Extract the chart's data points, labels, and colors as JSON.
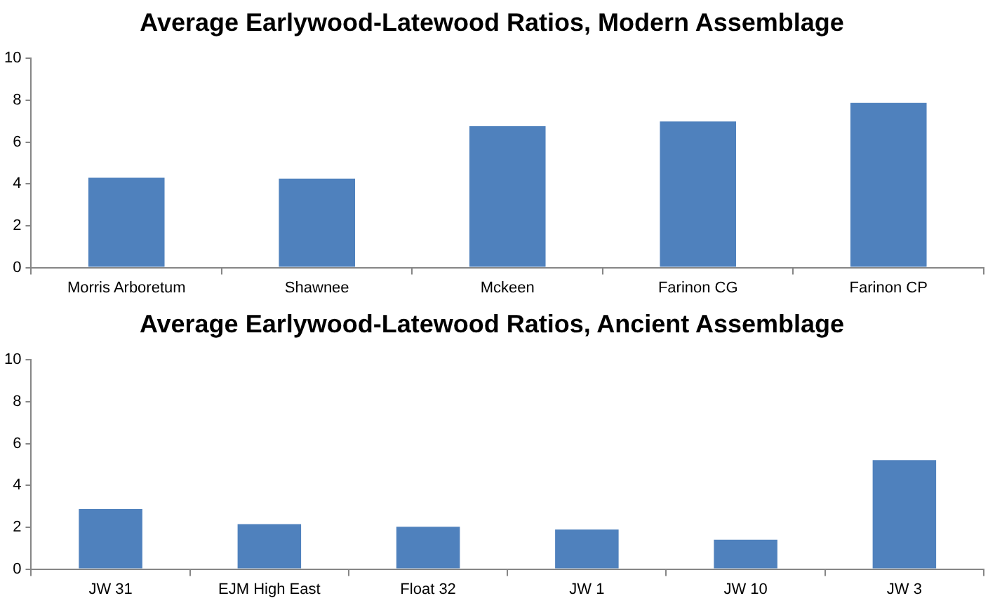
{
  "chart_data": [
    {
      "type": "bar",
      "title": "Average Earlywood-Latewood Ratios, Modern Assemblage",
      "categories": [
        "Morris Arboretum",
        "Shawnee",
        "Mckeen",
        "Farinon CG",
        "Farinon CP"
      ],
      "values": [
        4.29,
        4.25,
        6.76,
        6.98,
        7.87
      ],
      "color": "#4f81bd",
      "ylim": [
        0,
        10
      ],
      "yticks": [
        0,
        2,
        4,
        6,
        8,
        10
      ],
      "grid": false,
      "legend": false
    },
    {
      "type": "bar",
      "title": "Average Earlywood-Latewood Ratios, Ancient Assemblage",
      "categories": [
        "JW 31",
        "EJM High East",
        "Float 32",
        "JW 1",
        "JW 10",
        "JW 3"
      ],
      "values": [
        2.87,
        2.15,
        2.02,
        1.89,
        1.4,
        5.21
      ],
      "color": "#4f81bd",
      "ylim": [
        0,
        10
      ],
      "yticks": [
        0,
        2,
        4,
        6,
        8,
        10
      ],
      "grid": false,
      "legend": false
    }
  ]
}
